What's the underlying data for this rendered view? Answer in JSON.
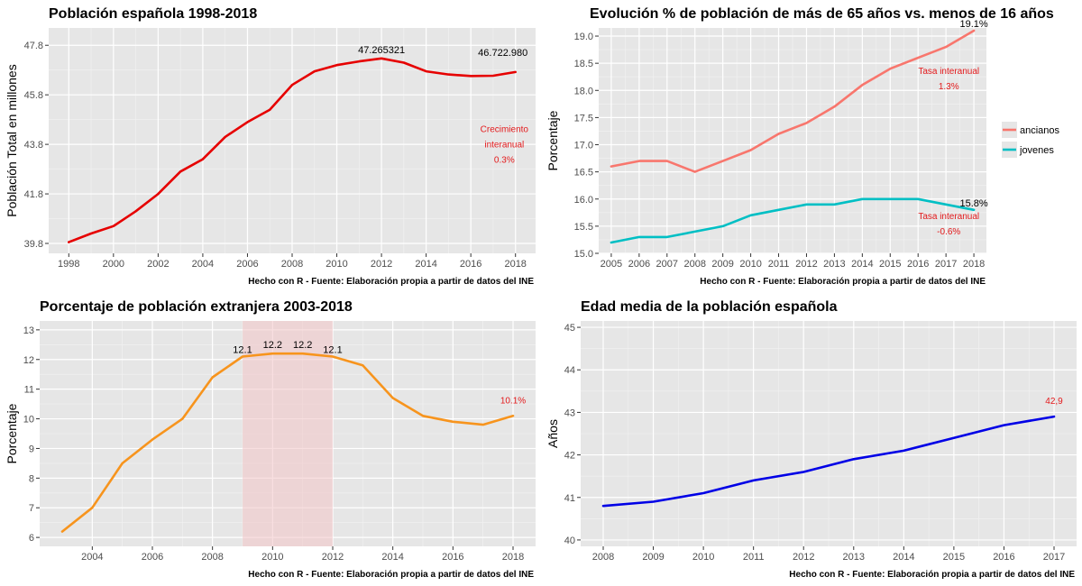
{
  "chart_data": [
    {
      "id": "p1",
      "type": "line",
      "title": "Población española 1998-2018",
      "ylabel": "Población Total en millones",
      "caption": "Hecho con R - Fuente: Elaboración propia a partir de datos del INE",
      "xlim": [
        1997.1,
        2018.9
      ],
      "ylim": [
        39.4,
        48.5
      ],
      "xticks": [
        1998,
        2000,
        2002,
        2004,
        2006,
        2008,
        2010,
        2012,
        2014,
        2016,
        2018
      ],
      "yticks": [
        39.8,
        41.8,
        43.8,
        45.8,
        47.8
      ],
      "ytick_labels": [
        "39.8",
        "41.8",
        "43.8",
        "45.8",
        "47.8"
      ],
      "series": [
        {
          "color": "#e60000",
          "x": [
            1998,
            1999,
            2000,
            2001,
            2002,
            2003,
            2004,
            2005,
            2006,
            2007,
            2008,
            2009,
            2010,
            2011,
            2012,
            2013,
            2014,
            2015,
            2016,
            2017,
            2018
          ],
          "y": [
            39.85,
            40.2,
            40.5,
            41.1,
            41.8,
            42.7,
            43.2,
            44.1,
            44.7,
            45.2,
            46.2,
            46.75,
            47.0,
            47.15,
            47.27,
            47.1,
            46.75,
            46.62,
            46.56,
            46.57,
            46.72
          ]
        }
      ],
      "annotations": [
        {
          "text": "47.265321",
          "x": 2012,
          "y": 47.27,
          "style": "dlabel",
          "dy": -6
        },
        {
          "text": "46.722.980",
          "x": 2018,
          "y": 46.72,
          "style": "dlabel",
          "dy": -18,
          "dx": -14
        }
      ],
      "notes": [
        {
          "lines": [
            "Crecimiento",
            "interanual",
            "0.3%"
          ],
          "x": 2017.5,
          "y": 44.3
        }
      ]
    },
    {
      "id": "p2",
      "type": "line",
      "title": "Evolución % de población de más de 65 años vs. menos de 16 años",
      "ylabel": "Porcentaje",
      "caption": "Hecho con R - Fuente: Elaboración propia a partir de datos del INE",
      "xlim": [
        2004.55,
        2018.45
      ],
      "ylim": [
        15.0,
        19.15
      ],
      "xticks": [
        2005,
        2006,
        2007,
        2008,
        2009,
        2010,
        2011,
        2012,
        2013,
        2014,
        2015,
        2016,
        2017,
        2018
      ],
      "yticks": [
        15.0,
        15.5,
        16.0,
        16.5,
        17.0,
        17.5,
        18.0,
        18.5,
        19.0
      ],
      "ytick_labels": [
        "15.0",
        "15.5",
        "16.0",
        "16.5",
        "17.0",
        "17.5",
        "18.0",
        "18.5",
        "19.0"
      ],
      "legend": {
        "position": "right"
      },
      "series": [
        {
          "name": "ancianos",
          "color": "#f8766d",
          "x": [
            2005,
            2006,
            2007,
            2008,
            2009,
            2010,
            2011,
            2012,
            2013,
            2014,
            2015,
            2016,
            2017,
            2018
          ],
          "y": [
            16.6,
            16.7,
            16.7,
            16.5,
            16.7,
            16.9,
            17.2,
            17.4,
            17.7,
            18.1,
            18.4,
            18.6,
            18.8,
            19.1
          ]
        },
        {
          "name": "jovenes",
          "color": "#00bfc4",
          "x": [
            2005,
            2006,
            2007,
            2008,
            2009,
            2010,
            2011,
            2012,
            2013,
            2014,
            2015,
            2016,
            2017,
            2018
          ],
          "y": [
            15.2,
            15.3,
            15.3,
            15.4,
            15.5,
            15.7,
            15.8,
            15.9,
            15.9,
            16.0,
            16.0,
            16.0,
            15.9,
            15.8
          ]
        }
      ],
      "annotations": [
        {
          "text": "19.1%",
          "x": 2018,
          "y": 19.1,
          "style": "dlabel",
          "dy": -4
        },
        {
          "text": "15.8%",
          "x": 2018,
          "y": 15.8,
          "style": "dlabel",
          "dy": -4
        }
      ],
      "notes": [
        {
          "lines": [
            "Tasa interanual",
            "1.3%"
          ],
          "x": 2017.1,
          "y": 18.3
        },
        {
          "lines": [
            "Tasa interanual",
            "-0.6%"
          ],
          "x": 2017.1,
          "y": 15.63
        }
      ]
    },
    {
      "id": "p3",
      "type": "line",
      "title": "Porcentaje de población extranjera 2003-2018",
      "ylabel": "Porcentaje",
      "caption": "Hecho con R - Fuente: Elaboración propia a partir de datos del INE",
      "xlim": [
        2002.25,
        2018.75
      ],
      "ylim": [
        5.7,
        13.3
      ],
      "xticks": [
        2004,
        2006,
        2008,
        2010,
        2012,
        2014,
        2016,
        2018
      ],
      "yticks": [
        6,
        7,
        8,
        9,
        10,
        11,
        12,
        13
      ],
      "ytick_labels": [
        "6",
        "7",
        "8",
        "9",
        "10",
        "11",
        "12",
        "13"
      ],
      "highlight": {
        "x0": 2009,
        "x1": 2012,
        "color": "#f2c4c6"
      },
      "series": [
        {
          "color": "#f7941d",
          "x": [
            2003,
            2004,
            2005,
            2006,
            2007,
            2008,
            2009,
            2010,
            2011,
            2012,
            2013,
            2014,
            2015,
            2016,
            2017,
            2018
          ],
          "y": [
            6.2,
            7.0,
            8.5,
            9.3,
            10.0,
            11.4,
            12.1,
            12.2,
            12.2,
            12.1,
            11.8,
            10.7,
            10.1,
            9.9,
            9.8,
            10.1
          ]
        }
      ],
      "annotations": [
        {
          "text": "12.1",
          "x": 2009,
          "y": 12.1,
          "style": "dlabel",
          "dy": -4
        },
        {
          "text": "12.2",
          "x": 2010,
          "y": 12.2,
          "style": "dlabel",
          "dy": -6
        },
        {
          "text": "12.2",
          "x": 2011,
          "y": 12.2,
          "style": "dlabel",
          "dy": -6
        },
        {
          "text": "12.1",
          "x": 2012,
          "y": 12.1,
          "style": "dlabel",
          "dy": -4
        },
        {
          "text": "10.1%",
          "x": 2018,
          "y": 10.1,
          "style": "rednote",
          "dy": -14
        }
      ]
    },
    {
      "id": "p4",
      "type": "line",
      "title": "Edad media de la población española",
      "ylabel": "Años",
      "caption": "Hecho con R - Fuente: Elaboración propia a partir de datos del INE",
      "xlim": [
        2007.55,
        2017.45
      ],
      "ylim": [
        39.85,
        45.15
      ],
      "xticks": [
        2008,
        2009,
        2010,
        2011,
        2012,
        2013,
        2014,
        2015,
        2016,
        2017
      ],
      "yticks": [
        40,
        41,
        42,
        43,
        44,
        45
      ],
      "ytick_labels": [
        "40",
        "41",
        "42",
        "43",
        "44",
        "45"
      ],
      "series": [
        {
          "color": "#0000e6",
          "x": [
            2008,
            2009,
            2010,
            2011,
            2012,
            2013,
            2014,
            2015,
            2016,
            2017
          ],
          "y": [
            40.8,
            40.9,
            41.1,
            41.4,
            41.6,
            41.9,
            42.1,
            42.4,
            42.7,
            42.9
          ]
        }
      ],
      "annotations": [
        {
          "text": "42,9",
          "x": 2017,
          "y": 42.9,
          "style": "rednote",
          "dy": -14
        }
      ]
    }
  ]
}
